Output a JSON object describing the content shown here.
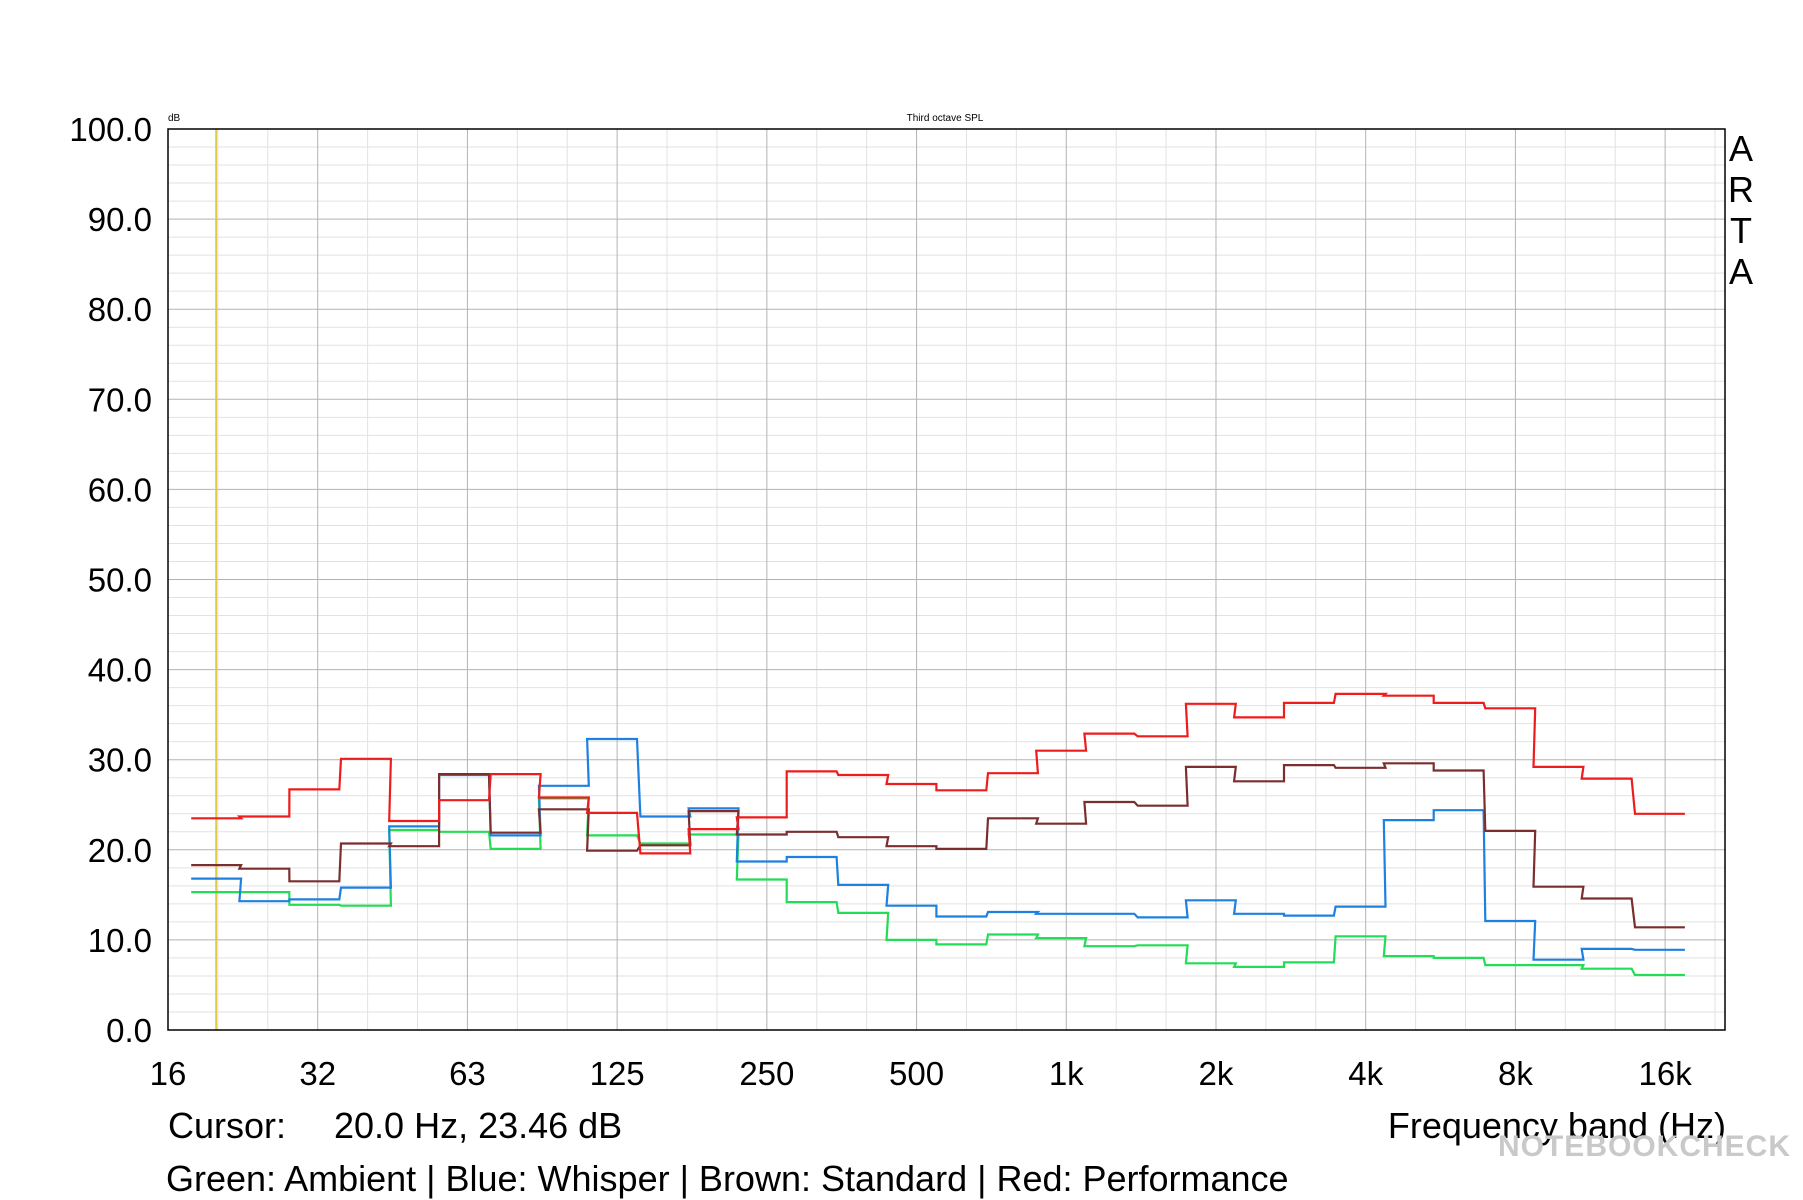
{
  "chart_data": {
    "type": "line",
    "title": "Third octave SPL",
    "yunit": "dB",
    "xlabel": "Frequency band (Hz)",
    "ylim": [
      0,
      100
    ],
    "xscale": "log",
    "xlim_hz": [
      16,
      20000
    ],
    "y_ticks": [
      "0.0",
      "10.0",
      "20.0",
      "30.0",
      "40.0",
      "50.0",
      "60.0",
      "70.0",
      "80.0",
      "90.0",
      "100.0"
    ],
    "x_ticks": [
      {
        "hz": 16,
        "label": "16"
      },
      {
        "hz": 32,
        "label": "32"
      },
      {
        "hz": 63,
        "label": "63"
      },
      {
        "hz": 125,
        "label": "125"
      },
      {
        "hz": 250,
        "label": "250"
      },
      {
        "hz": 500,
        "label": "500"
      },
      {
        "hz": 1000,
        "label": "1k"
      },
      {
        "hz": 2000,
        "label": "2k"
      },
      {
        "hz": 4000,
        "label": "4k"
      },
      {
        "hz": 8000,
        "label": "8k"
      },
      {
        "hz": 16000,
        "label": "16k"
      }
    ],
    "grid": true,
    "plot_type": "third-octave step",
    "bands_hz": [
      20,
      25,
      31.5,
      40,
      50,
      63,
      80,
      100,
      125,
      160,
      200,
      250,
      315,
      400,
      500,
      630,
      800,
      1000,
      1250,
      1600,
      2000,
      2500,
      3150,
      4000,
      5000,
      6300,
      8000,
      10000,
      12500,
      16000
    ],
    "series": [
      {
        "name": "Ambient",
        "color": "#22dd55",
        "values": [
          15.3,
          15.3,
          13.9,
          13.8,
          22.2,
          22.0,
          20.1,
          25.7,
          21.6,
          20.7,
          21.7,
          16.7,
          14.2,
          13.0,
          10.0,
          9.5,
          10.6,
          10.2,
          9.3,
          9.4,
          7.4,
          7.0,
          7.5,
          10.4,
          8.2,
          8.0,
          7.2,
          7.2,
          6.8,
          6.1
        ]
      },
      {
        "name": "Whisper",
        "color": "#1e80e0",
        "values": [
          16.8,
          14.3,
          14.5,
          15.8,
          22.6,
          28.3,
          21.6,
          27.1,
          32.3,
          23.7,
          24.6,
          18.7,
          19.2,
          16.1,
          13.8,
          12.6,
          13.1,
          12.9,
          12.9,
          12.5,
          14.4,
          12.9,
          12.7,
          13.7,
          23.3,
          24.4,
          12.1,
          7.8,
          9.0,
          8.9
        ]
      },
      {
        "name": "Standard",
        "color": "#7a2e2e",
        "values": [
          18.3,
          17.9,
          16.5,
          20.7,
          20.4,
          28.4,
          21.9,
          24.5,
          19.9,
          20.5,
          24.3,
          21.7,
          22.0,
          21.4,
          20.4,
          20.1,
          23.5,
          22.9,
          25.3,
          24.9,
          29.2,
          27.6,
          29.4,
          29.1,
          29.6,
          28.8,
          22.1,
          15.9,
          14.6,
          11.4
        ]
      },
      {
        "name": "Performance",
        "color": "#ee1c1c",
        "values": [
          23.5,
          23.7,
          26.7,
          30.1,
          23.2,
          25.5,
          28.4,
          25.8,
          24.1,
          19.6,
          22.3,
          23.6,
          28.7,
          28.3,
          27.3,
          26.6,
          28.5,
          31.0,
          32.9,
          32.6,
          36.2,
          34.7,
          36.3,
          37.3,
          37.1,
          36.3,
          35.7,
          29.2,
          27.9,
          24.0
        ]
      }
    ],
    "cursor_hz": 20.0
  },
  "header": {
    "unit": "dB",
    "title": "Third octave SPL",
    "brand_letters": [
      "A",
      "R",
      "T",
      "A"
    ]
  },
  "footer": {
    "cursor_label": "Cursor:",
    "cursor_value": "20.0 Hz, 23.46 dB",
    "xlabel": "Frequency band (Hz)",
    "legend": "Green: Ambient | Blue: Whisper | Brown: Standard | Red: Performance"
  },
  "watermark": "NOTEBOOKCHECK"
}
